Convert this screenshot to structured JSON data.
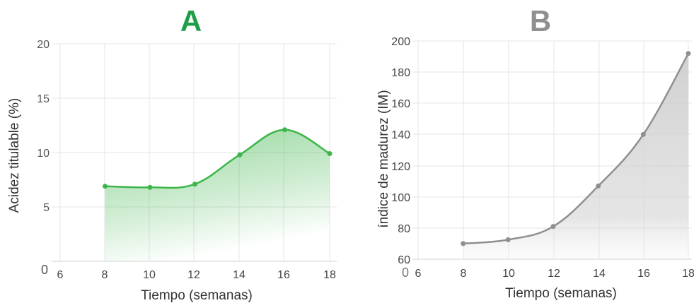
{
  "chart_data": [
    {
      "type": "area",
      "title": "A",
      "xlabel": "Tiempo (semanas)",
      "ylabel": "Acidez titulable (%)",
      "x": [
        8,
        10,
        12,
        14,
        16,
        18
      ],
      "series": [
        {
          "values": [
            6.9,
            6.8,
            7.1,
            9.8,
            12.1,
            9.9
          ]
        }
      ],
      "xlim": [
        6,
        18
      ],
      "ylim": [
        0,
        20
      ],
      "xticks": [
        "6",
        "8",
        "10",
        "12",
        "14",
        "16",
        "18"
      ],
      "yticks": [
        "0",
        "5",
        "10",
        "15",
        "20"
      ],
      "grid": true,
      "colors": {
        "title": "#1f9e4a",
        "line": "#3db54a",
        "fill": "#3db54a"
      }
    },
    {
      "type": "area",
      "title": "B",
      "xlabel": "Tiempo (semanas)",
      "ylabel": "índice de madurez (IM)",
      "x": [
        8,
        10,
        12,
        14,
        16,
        18
      ],
      "series": [
        {
          "values": [
            70,
            72.5,
            81,
            107,
            140,
            192
          ]
        }
      ],
      "xlim": [
        6,
        18
      ],
      "ylim": [
        60,
        200
      ],
      "xticks": [
        "6",
        "8",
        "10",
        "12",
        "14",
        "16",
        "18"
      ],
      "yticks": [
        "60",
        "80",
        "100",
        "120",
        "140",
        "160",
        "180",
        "200"
      ],
      "origin_label": "0",
      "grid": true,
      "colors": {
        "title": "#8f8f8f",
        "line": "#8f8f8f",
        "fill": "#c4c4c4"
      }
    }
  ]
}
